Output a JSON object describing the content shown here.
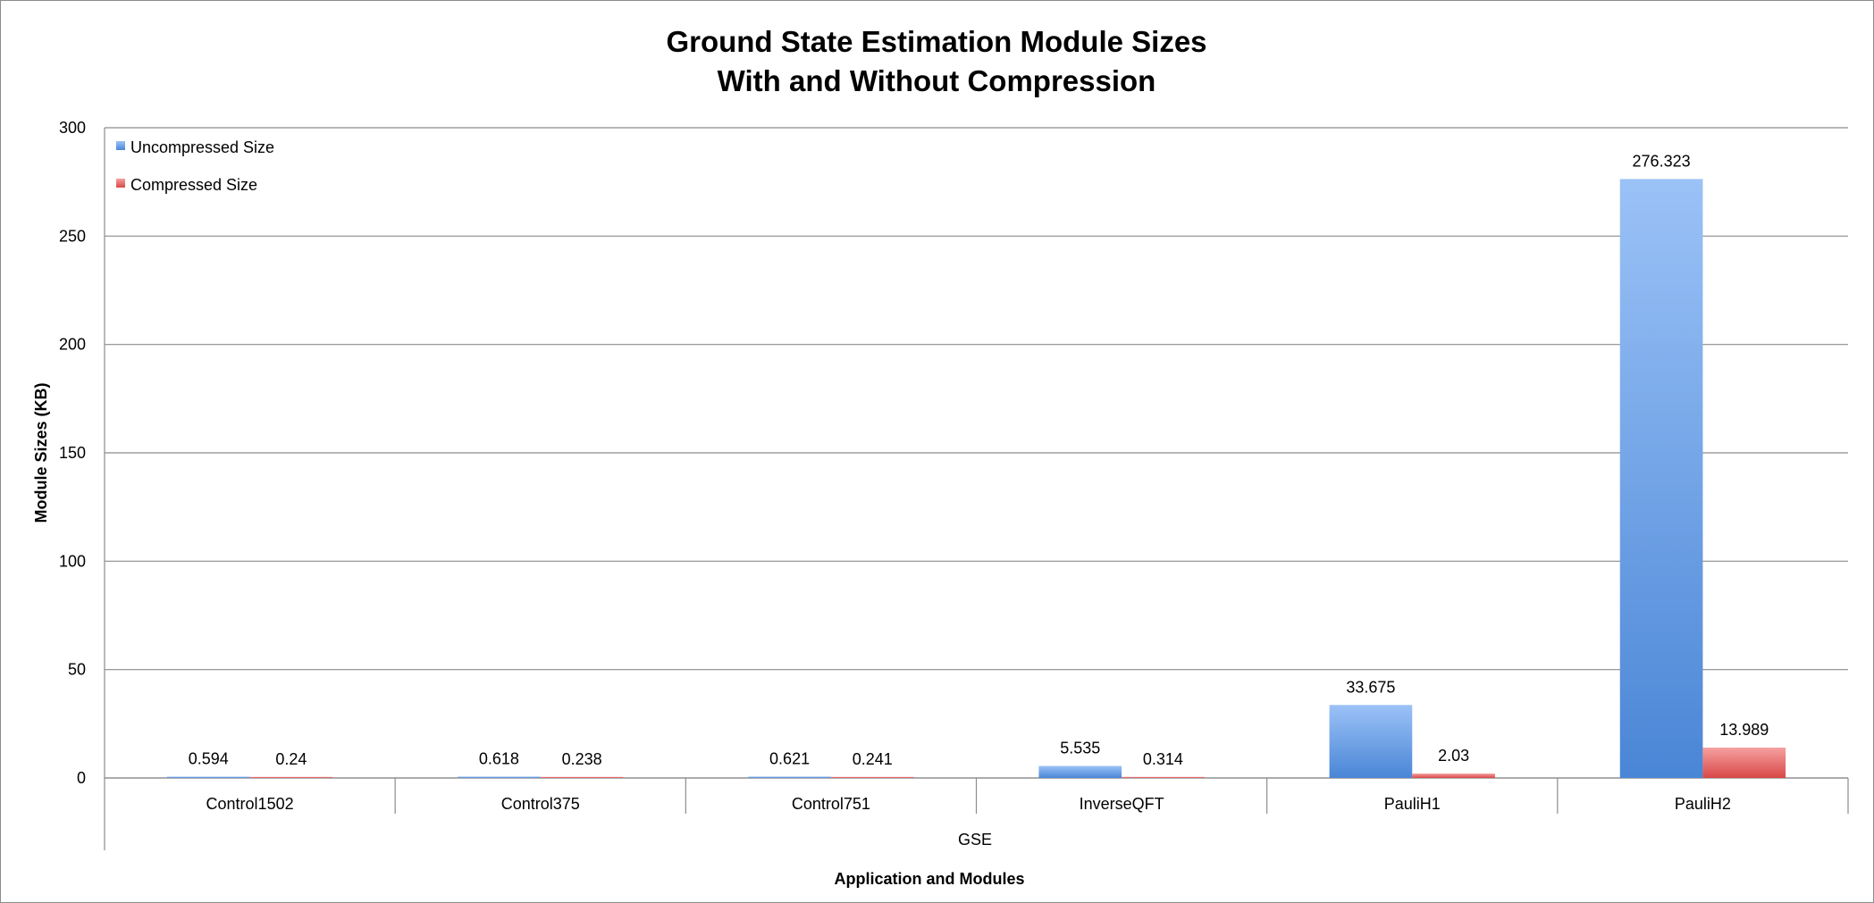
{
  "chart_data": {
    "type": "bar",
    "title": [
      "Ground State Estimation Module Sizes",
      "With and Without Compression"
    ],
    "ylabel": "Module Sizes (KB)",
    "xlabel": "Application and Modules",
    "group_label": "GSE",
    "categories": [
      "Control1502",
      "Control375",
      "Control751",
      "InverseQFT",
      "PauliH1",
      "PauliH2"
    ],
    "series": [
      {
        "name": "Uncompressed Size",
        "values": [
          0.594,
          0.618,
          0.621,
          5.535,
          33.675,
          276.323
        ],
        "labels": [
          "0.594",
          "0.618",
          "0.621",
          "5.535",
          "33.675",
          "276.323"
        ],
        "color": "#4a86d6",
        "color_light": "#9bc2f7"
      },
      {
        "name": "Compressed Size",
        "values": [
          0.24,
          0.238,
          0.241,
          0.314,
          2.03,
          13.989
        ],
        "labels": [
          "0.24",
          "0.238",
          "0.241",
          "0.314",
          "2.03",
          "13.989"
        ],
        "color": "#d94848",
        "color_light": "#f5a0a0"
      }
    ],
    "ylim": [
      0,
      300
    ],
    "yticks": [
      0,
      50,
      100,
      150,
      200,
      250,
      300
    ],
    "grid": true,
    "legend_position": "top-left"
  }
}
